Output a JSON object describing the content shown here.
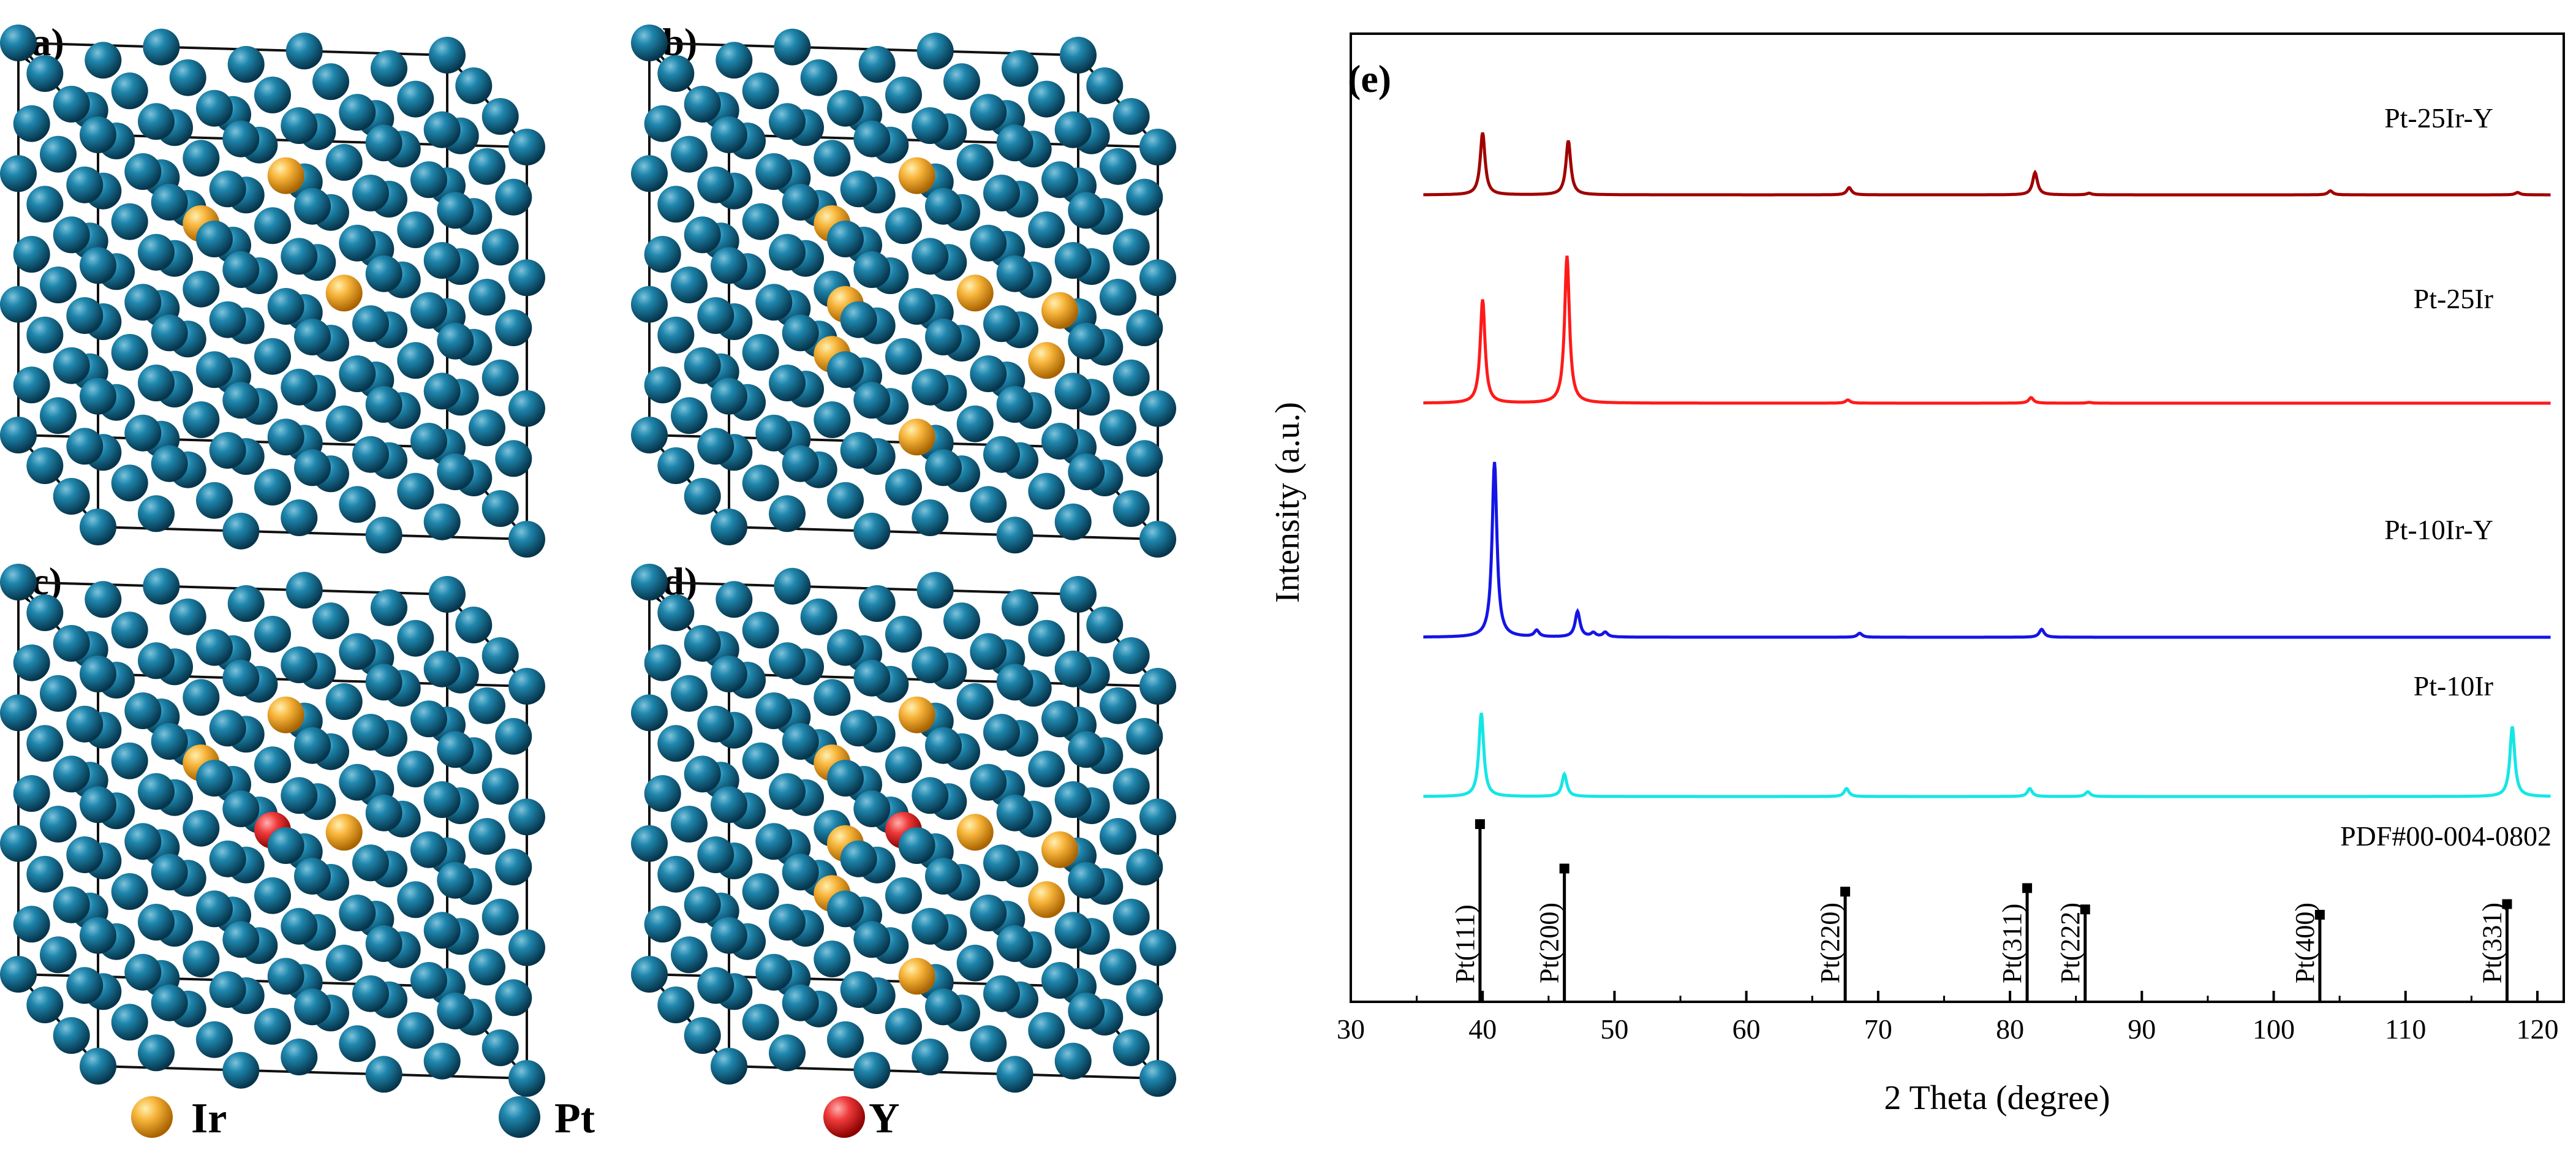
{
  "figure": {
    "panels": [
      {
        "letter": "(a)",
        "ir_count": 3,
        "y_count": 0
      },
      {
        "letter": "(b)",
        "ir_count": 8,
        "y_count": 0
      },
      {
        "letter": "(c)",
        "ir_count": 3,
        "y_count": 1
      },
      {
        "letter": "(d)",
        "ir_count": 8,
        "y_count": 1
      }
    ],
    "legend": [
      {
        "label": "Ir",
        "color": "#f5a623"
      },
      {
        "label": "Pt",
        "color": "#0f5f7f"
      },
      {
        "label": "Y",
        "color": "#e8222a"
      }
    ]
  },
  "chart_data": {
    "type": "line",
    "panel_letter": "(e)",
    "xlabel": "2 Theta (degree)",
    "ylabel": "Intensity (a.u.)",
    "xlim": [
      30,
      122
    ],
    "xticks": [
      30,
      40,
      50,
      60,
      70,
      80,
      90,
      100,
      110,
      120
    ],
    "series": [
      {
        "name": "Pt-25Ir-Y",
        "color": "#a00000",
        "peaks": [
          [
            40.0,
            0.78
          ],
          [
            46.5,
            0.68
          ],
          [
            67.8,
            0.09
          ],
          [
            81.9,
            0.28
          ],
          [
            86.0,
            0.02
          ],
          [
            104.3,
            0.05
          ],
          [
            118.5,
            0.03
          ]
        ]
      },
      {
        "name": "Pt-25Ir",
        "color": "#ff1a1a",
        "peaks": [
          [
            40.0,
            1.3
          ],
          [
            46.4,
            1.85
          ],
          [
            67.7,
            0.04
          ],
          [
            81.6,
            0.07
          ],
          [
            86.0,
            0.01
          ]
        ]
      },
      {
        "name": "Pt-10Ir-Y",
        "color": "#1414e6",
        "peaks": [
          [
            40.9,
            2.2
          ],
          [
            44.1,
            0.08
          ],
          [
            47.2,
            0.32
          ],
          [
            48.4,
            0.05
          ],
          [
            49.3,
            0.06
          ],
          [
            68.6,
            0.05
          ],
          [
            82.4,
            0.1
          ]
        ]
      },
      {
        "name": "Pt-10Ir",
        "color": "#14e6e6",
        "peaks": [
          [
            39.9,
            1.05
          ],
          [
            46.2,
            0.28
          ],
          [
            67.6,
            0.1
          ],
          [
            81.5,
            0.1
          ],
          [
            85.9,
            0.06
          ],
          [
            118.1,
            0.88
          ]
        ]
      }
    ],
    "reference": {
      "label": "PDF#00-004-0802",
      "lines": [
        {
          "hkl": "Pt(111)",
          "x": 39.8,
          "intensity": 100
        },
        {
          "hkl": "Pt(200)",
          "x": 46.2,
          "intensity": 75
        },
        {
          "hkl": "Pt(220)",
          "x": 67.5,
          "intensity": 62
        },
        {
          "hkl": "Pt(311)",
          "x": 81.3,
          "intensity": 64
        },
        {
          "hkl": "Pt(222)",
          "x": 85.7,
          "intensity": 52
        },
        {
          "hkl": "Pt(400)",
          "x": 103.5,
          "intensity": 49
        },
        {
          "hkl": "Pt(331)",
          "x": 117.7,
          "intensity": 55
        }
      ]
    }
  }
}
